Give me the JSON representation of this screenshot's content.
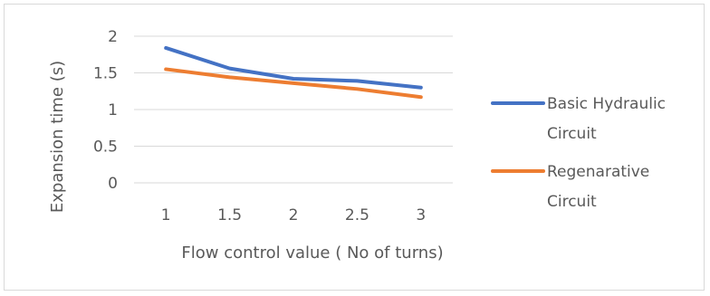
{
  "chart_data": {
    "type": "line",
    "title": "",
    "xlabel": "Flow control value ( No of turns)",
    "ylabel": "Expansion time (s)",
    "categories": [
      "1",
      "1.5",
      "2",
      "2.5",
      "3"
    ],
    "x": [
      1,
      1.5,
      2,
      2.5,
      3
    ],
    "ylim": [
      0,
      2
    ],
    "yticks": [
      "0",
      "0.5",
      "1",
      "1.5",
      "2"
    ],
    "grid": true,
    "legend_position": "right",
    "series": [
      {
        "name_lines": [
          "Basic Hydraulic",
          "Circuit"
        ],
        "color": "#4472c4",
        "values": [
          1.84,
          1.56,
          1.42,
          1.39,
          1.3
        ]
      },
      {
        "name_lines": [
          "Regenarative",
          "Circuit"
        ],
        "color": "#ed7d31",
        "values": [
          1.55,
          1.44,
          1.36,
          1.28,
          1.17
        ]
      }
    ]
  }
}
